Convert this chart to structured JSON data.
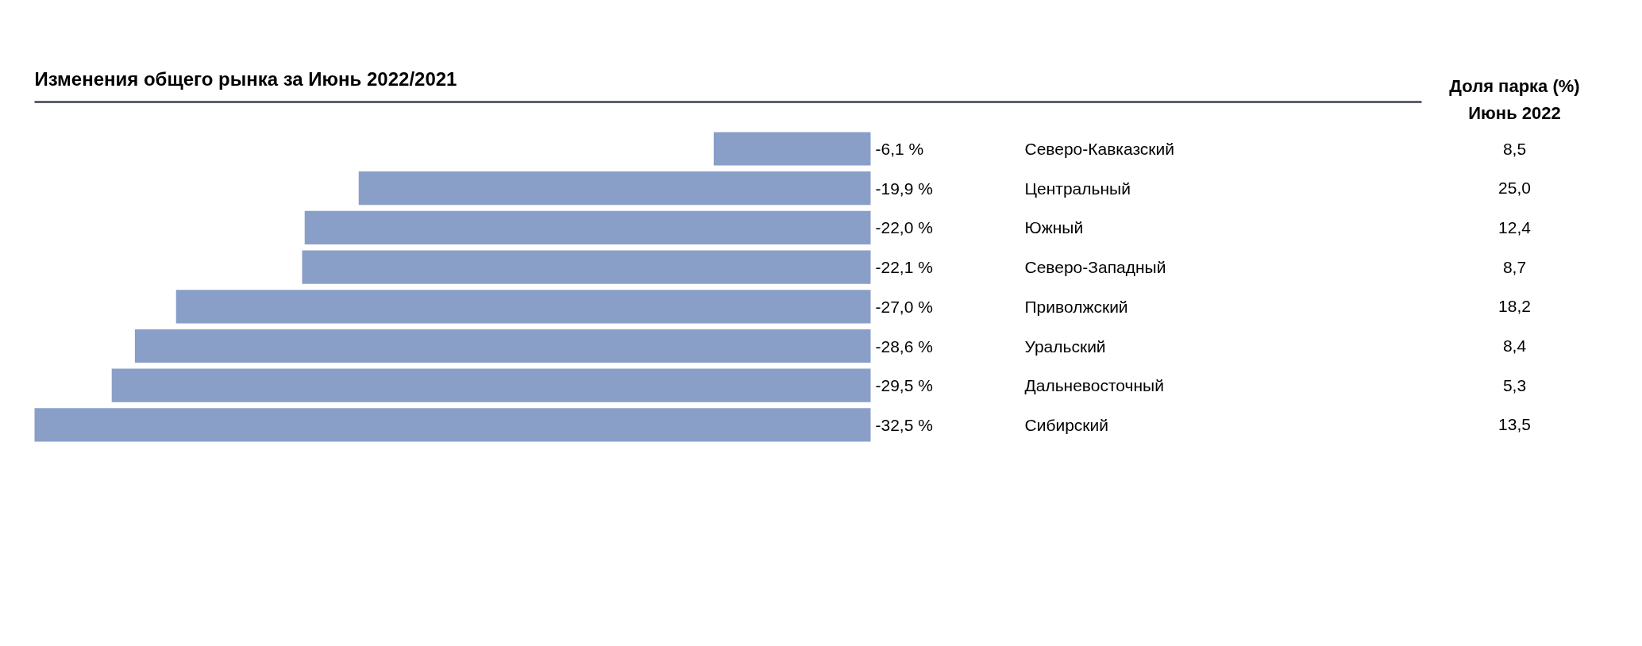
{
  "chart_data": [
    {
      "type": "bar",
      "orientation": "horizontal",
      "title": "Изменения общего рынка за Июнь 2022/2021",
      "categories": [
        "Северо-Кавказский",
        "Центральный",
        "Южный",
        "Северо-Западный",
        "Приволжский",
        "Уральский",
        "Дальневосточный",
        "Сибирский"
      ],
      "values": [
        -6.1,
        -19.9,
        -22.0,
        -22.1,
        -27.0,
        -28.6,
        -29.5,
        -32.5
      ],
      "value_labels": [
        "-6,1 %",
        "-19,9 %",
        "-22,0 %",
        "-22,1 %",
        "-27,0 %",
        "-28,6 %",
        "-29,5 %",
        "-32,5 %"
      ],
      "color": "#8a9fc8",
      "xlim": [
        -32.5,
        0
      ],
      "tick_labels": "y",
      "grid": false
    },
    {
      "type": "other",
      "title": "Доля парка (%)",
      "subtitle": "Июнь 2022",
      "categories": [
        null,
        null,
        null,
        null,
        null,
        null,
        null,
        null
      ],
      "value_labels": [
        "8,5",
        "25,0",
        "12,4",
        "8,7",
        "18,2",
        "8,4",
        "5,3",
        "13,5"
      ]
    }
  ]
}
